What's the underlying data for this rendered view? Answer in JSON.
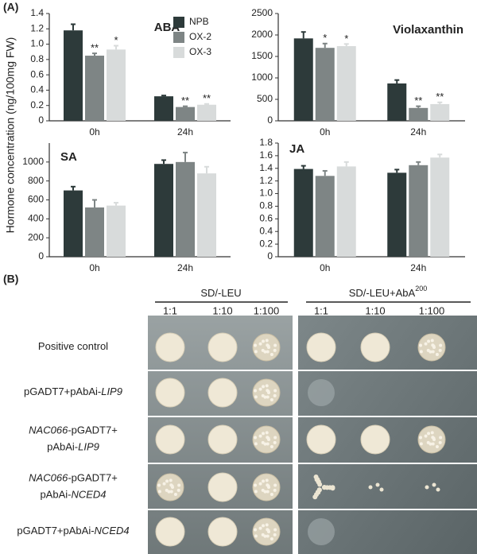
{
  "panel_labels": [
    "(A)",
    "(B)"
  ],
  "y_axis_label": "Hormone concentration (ng/100mg FW)",
  "chart_data": [
    {
      "type": "bar",
      "title": "ABA",
      "categories": [
        "0h",
        "24h"
      ],
      "legend": true,
      "ylim": [
        0,
        1.4
      ],
      "yticks": [
        0,
        0.2,
        0.4,
        0.6,
        0.8,
        {
          "value": 1,
          "label": "1.0"
        },
        1.2,
        1.4
      ],
      "series": [
        {
          "name": "NPB",
          "color": "#2d3a3a",
          "values": [
            1.18,
            0.32
          ],
          "errors": [
            0.08,
            0.01
          ],
          "significance": [
            null,
            null
          ]
        },
        {
          "name": "OX-2",
          "color": "#7e8585",
          "values": [
            0.85,
            0.18
          ],
          "errors": [
            0.03,
            0.01
          ],
          "significance": [
            "**",
            "**"
          ]
        },
        {
          "name": "OX-3",
          "color": "#d8dbdb",
          "values": [
            0.93,
            0.21
          ],
          "errors": [
            0.05,
            0.01
          ],
          "significance": [
            "*",
            "**"
          ]
        }
      ]
    },
    {
      "type": "bar",
      "title": "Violaxanthin",
      "categories": [
        "0h",
        "24h"
      ],
      "ylim": [
        0,
        2500
      ],
      "yticks": [
        0,
        500,
        1000,
        1500,
        2000,
        2500
      ],
      "series": [
        {
          "color": "#2d3a3a",
          "values": [
            1920,
            870
          ],
          "errors": [
            150,
            80
          ],
          "significance": [
            null,
            null
          ]
        },
        {
          "color": "#7e8585",
          "values": [
            1700,
            300
          ],
          "errors": [
            100,
            40
          ],
          "significance": [
            "*",
            "**"
          ]
        },
        {
          "color": "#d8dbdb",
          "values": [
            1740,
            390
          ],
          "errors": [
            50,
            40
          ],
          "significance": [
            "*",
            "**"
          ]
        }
      ]
    },
    {
      "type": "bar",
      "title": "SA",
      "categories": [
        "0h",
        "24h"
      ],
      "ylim": [
        0,
        1200
      ],
      "yticks": [
        0,
        200,
        400,
        600,
        800,
        1000
      ],
      "series": [
        {
          "color": "#2d3a3a",
          "values": [
            700,
            980
          ],
          "errors": [
            40,
            40
          ]
        },
        {
          "color": "#7e8585",
          "values": [
            520,
            1000
          ],
          "errors": [
            80,
            100
          ]
        },
        {
          "color": "#d8dbdb",
          "values": [
            540,
            880
          ],
          "errors": [
            30,
            70
          ]
        }
      ]
    },
    {
      "type": "bar",
      "title": "JA",
      "categories": [
        "0h",
        "24h"
      ],
      "ylim": [
        0,
        1.8
      ],
      "yticks": [
        0,
        0.2,
        0.4,
        0.6,
        0.8,
        {
          "value": 1,
          "label": "1.0"
        },
        1.2,
        1.4,
        1.6,
        1.8
      ],
      "series": [
        {
          "color": "#2d3a3a",
          "values": [
            1.39,
            1.33
          ],
          "errors": [
            0.05,
            0.05
          ]
        },
        {
          "color": "#7e8585",
          "values": [
            1.28,
            1.45
          ],
          "errors": [
            0.08,
            0.05
          ]
        },
        {
          "color": "#d8dbdb",
          "values": [
            1.43,
            1.57
          ],
          "errors": [
            0.07,
            0.05
          ]
        }
      ]
    }
  ],
  "yeast": {
    "media": [
      {
        "text": "SD/-LEU"
      },
      {
        "text": "SD/-LEU+AbA",
        "superscript": "200"
      }
    ],
    "dilutions": [
      "1:1",
      "1:10",
      "1:100"
    ],
    "rows": [
      {
        "label": [
          [
            {
              "text": "Positive control"
            }
          ]
        ]
      },
      {
        "label": [
          [
            {
              "text": "pGADT7+pAbAi-"
            },
            {
              "text": "LIP9",
              "italic": true
            }
          ]
        ]
      },
      {
        "label": [
          [
            {
              "text": "NAC066",
              "italic": true
            },
            {
              "text": "-pGADT7+"
            }
          ],
          [
            {
              "text": "pAbAi-"
            },
            {
              "text": "LIP9",
              "italic": true
            }
          ]
        ]
      },
      {
        "label": [
          [
            {
              "text": "NAC066",
              "italic": true
            },
            {
              "text": "-pGADT7+"
            }
          ],
          [
            {
              "text": "pAbAi-"
            },
            {
              "text": "NCED4",
              "italic": true
            }
          ]
        ]
      },
      {
        "label": [
          [
            {
              "text": "pGADT7+pAbAi-"
            },
            {
              "text": "NCED4",
              "italic": true
            }
          ]
        ]
      }
    ]
  }
}
